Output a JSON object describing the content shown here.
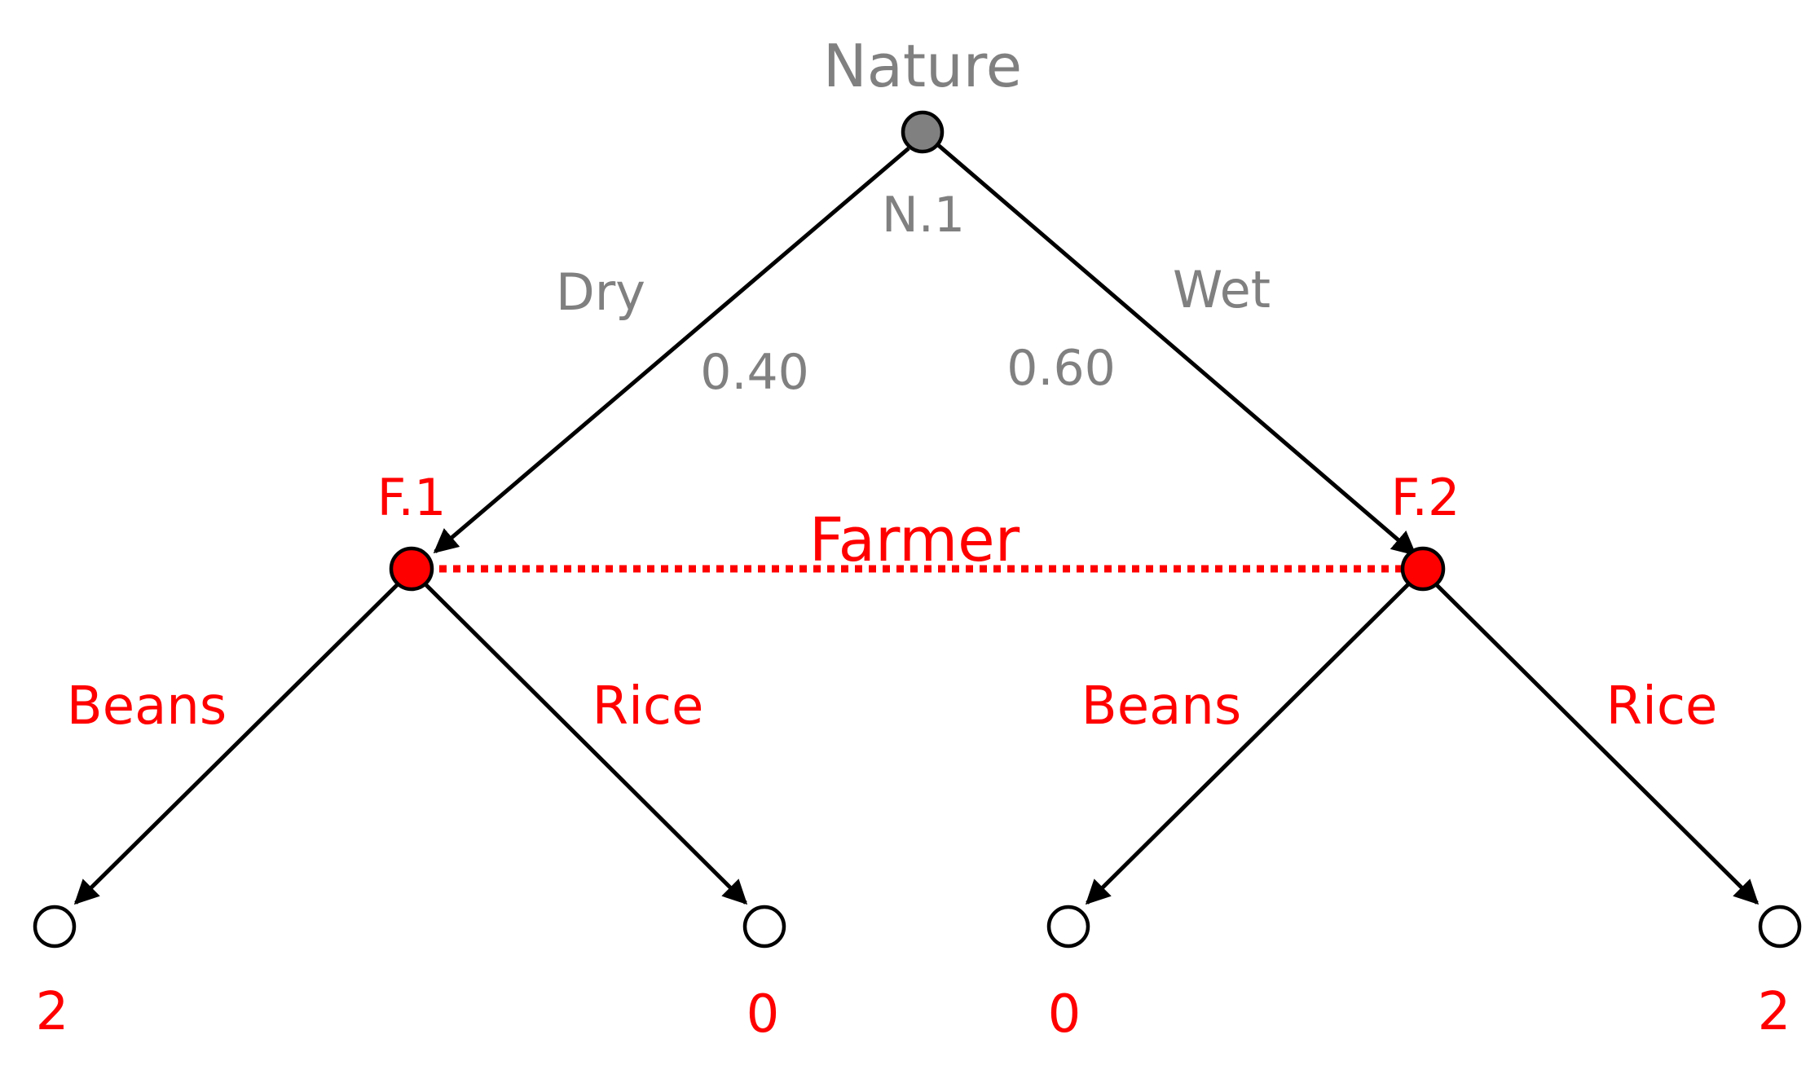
{
  "colors": {
    "nature": "#808080",
    "farmer": "#ff0000",
    "edge": "#000000",
    "terminal_fill": "#ffffff"
  },
  "nature": {
    "player_label": "Nature",
    "node_id": "N.1",
    "dry": {
      "action": "Dry",
      "probability": "0.40"
    },
    "wet": {
      "action": "Wet",
      "probability": "0.60"
    }
  },
  "farmer": {
    "player_label": "Farmer",
    "f1": {
      "node_id": "F.1",
      "beans": {
        "action": "Beans",
        "payoff": "2"
      },
      "rice": {
        "action": "Rice",
        "payoff": "0"
      }
    },
    "f2": {
      "node_id": "F.2",
      "beans": {
        "action": "Beans",
        "payoff": "0"
      },
      "rice": {
        "action": "Rice",
        "payoff": "2"
      }
    }
  }
}
